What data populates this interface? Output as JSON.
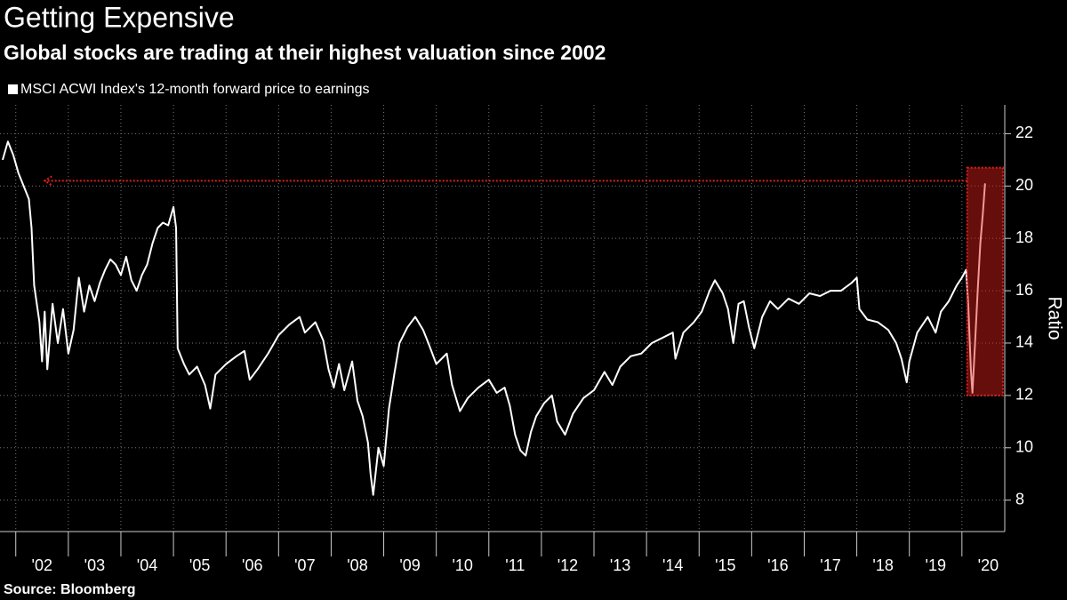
{
  "chart_data": {
    "type": "line",
    "title": "Getting Expensive",
    "subtitle": "Global stocks are trading at their highest valuation since 2002",
    "y_axis_label": "Ratio",
    "source": "Source: Bloomberg",
    "x": [
      2001.75,
      2001.85,
      2001.95,
      2002.05,
      2002.15,
      2002.25,
      2002.3,
      2002.35,
      2002.45,
      2002.5,
      2002.55,
      2002.6,
      2002.7,
      2002.8,
      2002.9,
      2003.0,
      2003.1,
      2003.2,
      2003.3,
      2003.4,
      2003.5,
      2003.6,
      2003.7,
      2003.8,
      2003.9,
      2004.0,
      2004.1,
      2004.2,
      2004.3,
      2004.4,
      2004.5,
      2004.6,
      2004.7,
      2004.8,
      2004.9,
      2005.0,
      2005.05,
      2005.08,
      2005.2,
      2005.3,
      2005.45,
      2005.6,
      2005.7,
      2005.8,
      2006.0,
      2006.2,
      2006.35,
      2006.45,
      2006.6,
      2006.8,
      2007.0,
      2007.2,
      2007.4,
      2007.5,
      2007.7,
      2007.85,
      2007.95,
      2008.05,
      2008.15,
      2008.25,
      2008.4,
      2008.5,
      2008.6,
      2008.7,
      2008.75,
      2008.8,
      2008.9,
      2009.0,
      2009.1,
      2009.2,
      2009.3,
      2009.45,
      2009.6,
      2009.75,
      2009.85,
      2010.0,
      2010.2,
      2010.3,
      2010.45,
      2010.6,
      2010.8,
      2011.0,
      2011.15,
      2011.3,
      2011.4,
      2011.5,
      2011.6,
      2011.7,
      2011.8,
      2011.9,
      2012.05,
      2012.2,
      2012.3,
      2012.45,
      2012.6,
      2012.8,
      2013.0,
      2013.2,
      2013.35,
      2013.5,
      2013.7,
      2013.9,
      2014.1,
      2014.3,
      2014.5,
      2014.55,
      2014.7,
      2014.9,
      2015.05,
      2015.2,
      2015.3,
      2015.45,
      2015.55,
      2015.65,
      2015.75,
      2015.85,
      2015.95,
      2016.05,
      2016.2,
      2016.35,
      2016.5,
      2016.7,
      2016.9,
      2017.1,
      2017.3,
      2017.5,
      2017.7,
      2017.9,
      2018.0,
      2018.05,
      2018.2,
      2018.4,
      2018.6,
      2018.75,
      2018.85,
      2018.95,
      2019.0,
      2019.15,
      2019.35,
      2019.5,
      2019.6,
      2019.75,
      2019.9,
      2020.0,
      2020.08,
      2020.12,
      2020.17,
      2020.2,
      2020.25,
      2020.3,
      2020.35,
      2020.4,
      2020.44
    ],
    "series": [
      {
        "name": "MSCI ACWI Index's 12-month forward price to earnings",
        "color": "#ffffff",
        "values": [
          21.0,
          21.7,
          21.2,
          20.5,
          20.0,
          19.5,
          18.4,
          16.2,
          14.8,
          13.3,
          15.2,
          13.0,
          15.5,
          14.0,
          15.3,
          13.6,
          14.5,
          16.5,
          15.2,
          16.2,
          15.6,
          16.3,
          16.8,
          17.2,
          17.0,
          16.6,
          17.3,
          16.4,
          16.0,
          16.6,
          17.0,
          17.8,
          18.4,
          18.6,
          18.5,
          19.2,
          18.4,
          13.8,
          13.2,
          12.8,
          13.1,
          12.4,
          11.5,
          12.8,
          13.2,
          13.5,
          13.7,
          12.6,
          13.0,
          13.6,
          14.3,
          14.7,
          15.0,
          14.4,
          14.8,
          14.1,
          13.0,
          12.3,
          13.2,
          12.2,
          13.3,
          11.8,
          11.2,
          10.2,
          9.0,
          8.2,
          10.0,
          9.3,
          11.5,
          12.8,
          14.0,
          14.6,
          15.0,
          14.5,
          14.0,
          13.2,
          13.6,
          12.4,
          11.4,
          11.9,
          12.3,
          12.6,
          12.1,
          12.3,
          11.6,
          10.5,
          9.9,
          9.7,
          10.6,
          11.2,
          11.7,
          12.0,
          11.0,
          10.5,
          11.3,
          11.9,
          12.2,
          12.9,
          12.4,
          13.1,
          13.5,
          13.6,
          14.0,
          14.2,
          14.4,
          13.4,
          14.4,
          14.8,
          15.2,
          16.0,
          16.4,
          15.9,
          15.3,
          14.0,
          15.5,
          15.6,
          14.6,
          13.8,
          15.0,
          15.6,
          15.3,
          15.7,
          15.5,
          15.9,
          15.8,
          16.0,
          16.0,
          16.3,
          16.5,
          15.3,
          14.9,
          14.8,
          14.5,
          14.0,
          13.4,
          12.5,
          13.3,
          14.4,
          15.0,
          14.4,
          15.2,
          15.6,
          16.2,
          16.5,
          16.8,
          15.5,
          13.0,
          12.1,
          14.0,
          16.0,
          17.8,
          19.0,
          20.1
        ]
      }
    ],
    "xlim": [
      2001.7,
      2020.815
    ],
    "xticks": [
      {
        "value": 2002.5,
        "label": "'02"
      },
      {
        "value": 2003.5,
        "label": "'03"
      },
      {
        "value": 2004.5,
        "label": "'04"
      },
      {
        "value": 2005.5,
        "label": "'05"
      },
      {
        "value": 2006.5,
        "label": "'06"
      },
      {
        "value": 2007.5,
        "label": "'07"
      },
      {
        "value": 2008.5,
        "label": "'08"
      },
      {
        "value": 2009.5,
        "label": "'09"
      },
      {
        "value": 2010.5,
        "label": "'10"
      },
      {
        "value": 2011.5,
        "label": "'11"
      },
      {
        "value": 2012.5,
        "label": "'12"
      },
      {
        "value": 2013.5,
        "label": "'13"
      },
      {
        "value": 2014.5,
        "label": "'14"
      },
      {
        "value": 2015.5,
        "label": "'15"
      },
      {
        "value": 2016.5,
        "label": "'16"
      },
      {
        "value": 2017.5,
        "label": "'17"
      },
      {
        "value": 2018.5,
        "label": "'18"
      },
      {
        "value": 2019.5,
        "label": "'19"
      },
      {
        "value": 2020.5,
        "label": "'20"
      }
    ],
    "xgrid": [
      2002,
      2003,
      2004,
      2005,
      2006,
      2007,
      2008,
      2009,
      2010,
      2011,
      2012,
      2013,
      2014,
      2015,
      2016,
      2017,
      2018,
      2019,
      2020
    ],
    "ylim": [
      6.8,
      23.1
    ],
    "yticks": [
      8,
      10,
      12,
      14,
      16,
      18,
      20,
      22
    ],
    "grid": true,
    "reference_line": {
      "y": 20.2,
      "x": [
        2002.55,
        2020.1
      ],
      "color": "#e0201b"
    },
    "highlight": {
      "x": [
        2020.1,
        2020.78
      ],
      "y": [
        12,
        20.7
      ],
      "color": "#e0201b"
    }
  }
}
